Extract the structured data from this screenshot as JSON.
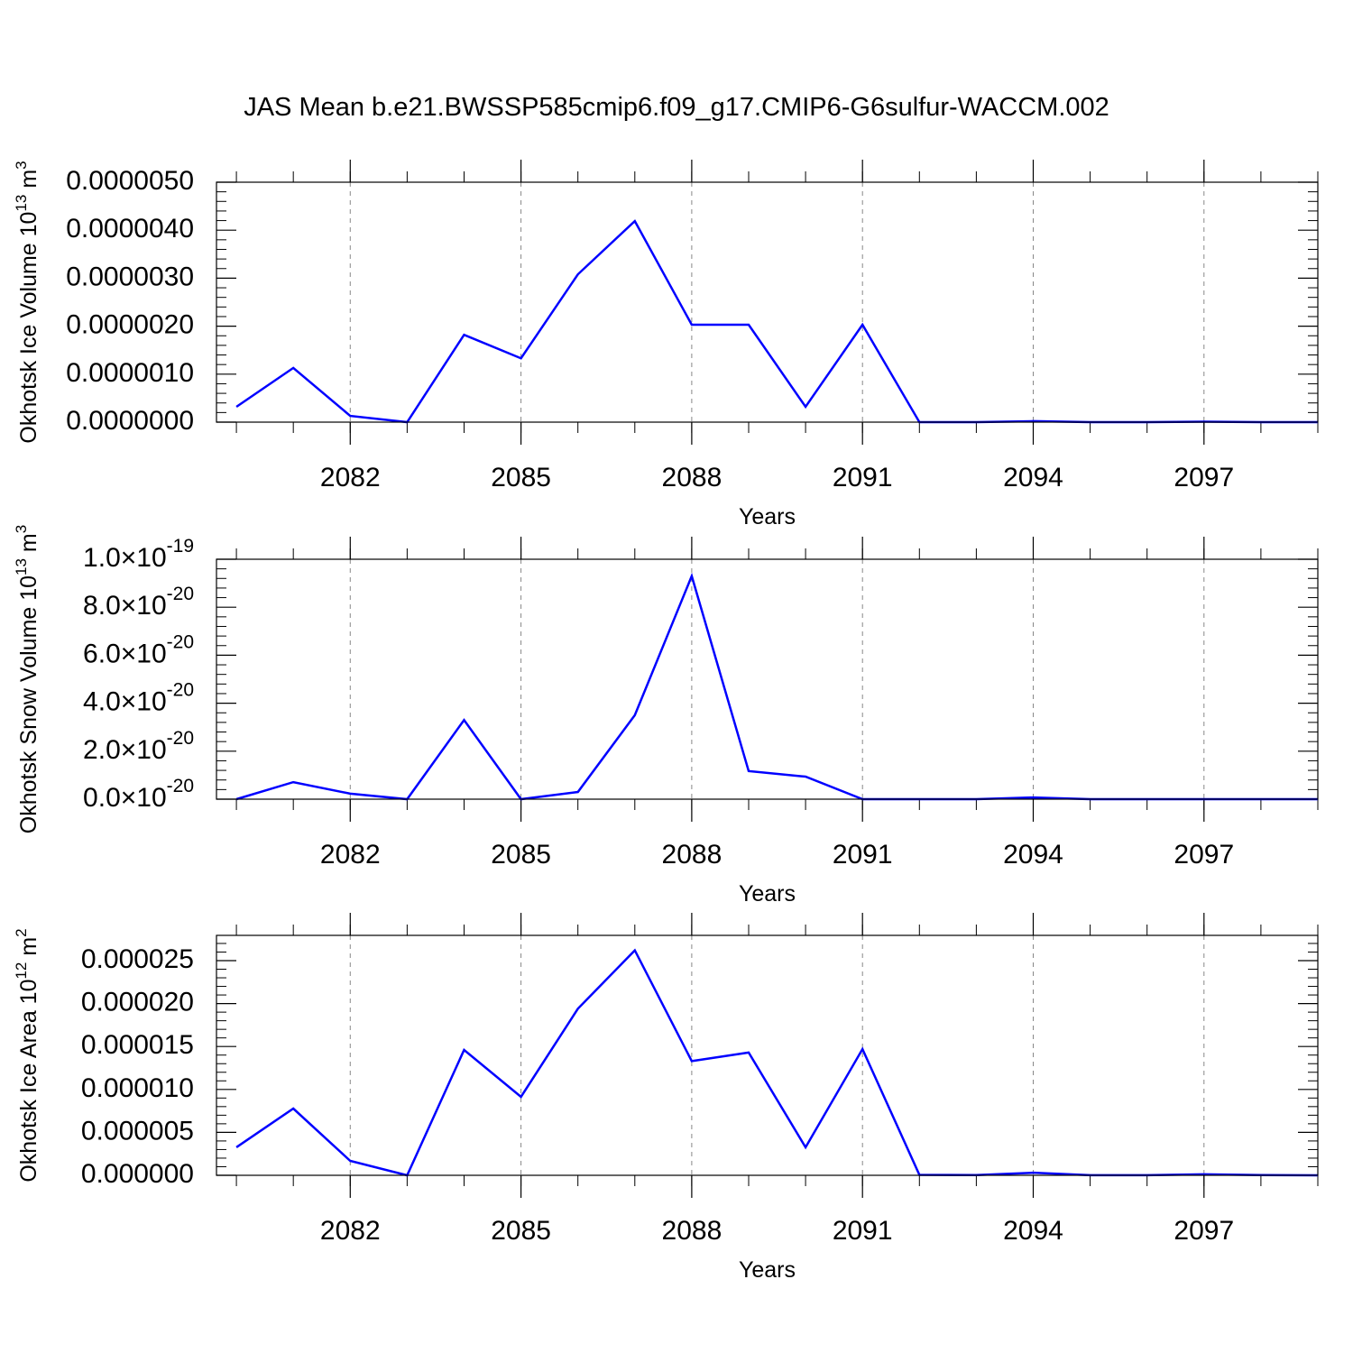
{
  "chart_data": [
    {
      "type": "line",
      "title": "JAS Mean b.e21.BWSSP585cmip6.f09_g17.CMIP6-G6sulfur-WACCM.002",
      "x_label": "Years",
      "y_label_parts": [
        "Okhotsk Ice Volume 10",
        "13",
        " m",
        "3"
      ],
      "x": [
        2080,
        2081,
        2082,
        2083,
        2084,
        2085,
        2086,
        2087,
        2088,
        2089,
        2090,
        2091,
        2092,
        2093,
        2094,
        2095,
        2096,
        2097,
        2098,
        2099
      ],
      "values": [
        3.2e-07,
        1.13e-06,
        1.3e-07,
        0,
        1.82e-06,
        1.33e-06,
        3.08e-06,
        4.19e-06,
        2.03e-06,
        2.03e-06,
        3.2e-07,
        2.03e-06,
        0,
        0,
        2e-08,
        0,
        0,
        1e-08,
        0,
        0
      ],
      "color": "#0000ff",
      "xlim": [
        2079.65,
        2099
      ],
      "xticks": [
        2082,
        2085,
        2088,
        2091,
        2094,
        2097
      ],
      "ylim": [
        0,
        5e-06
      ],
      "yticks": [
        {
          "value": 0,
          "label": "0.0000000"
        },
        {
          "value": 1e-06,
          "label": "0.0000010"
        },
        {
          "value": 2e-06,
          "label": "0.0000020"
        },
        {
          "value": 3e-06,
          "label": "0.0000030"
        },
        {
          "value": 4e-06,
          "label": "0.0000040"
        },
        {
          "value": 5e-06,
          "label": "0.0000050"
        }
      ],
      "grid": true
    },
    {
      "type": "line",
      "x_label": "Years",
      "y_label_parts": [
        "Okhotsk Snow Volume 10",
        "13",
        " m",
        "3"
      ],
      "x": [
        2080,
        2081,
        2082,
        2083,
        2084,
        2085,
        2086,
        2087,
        2088,
        2089,
        2090,
        2091,
        2092,
        2093,
        2094,
        2095,
        2096,
        2097,
        2098,
        2099
      ],
      "values": [
        0,
        7.1e-21,
        2.3e-21,
        0,
        3.3e-20,
        0,
        3e-21,
        3.5e-20,
        9.3e-20,
        1.17e-20,
        9.4e-21,
        0,
        0,
        0,
        7e-22,
        0,
        0,
        0,
        0,
        0
      ],
      "color": "#0000ff",
      "xlim": [
        2079.65,
        2099
      ],
      "xticks": [
        2082,
        2085,
        2088,
        2091,
        2094,
        2097
      ],
      "ylim": [
        0,
        1e-19
      ],
      "yticks": [
        {
          "value": 0,
          "label": "0.0×10",
          "exponent": "-20"
        },
        {
          "value": 2e-20,
          "label": "2.0×10",
          "exponent": "-20"
        },
        {
          "value": 4e-20,
          "label": "4.0×10",
          "exponent": "-20"
        },
        {
          "value": 6e-20,
          "label": "6.0×10",
          "exponent": "-20"
        },
        {
          "value": 8e-20,
          "label": "8.0×10",
          "exponent": "-20"
        },
        {
          "value": 1e-19,
          "label": "1.0×10",
          "exponent": "-19"
        }
      ],
      "grid": true
    },
    {
      "type": "line",
      "x_label": "Years",
      "y_label_parts": [
        "Okhotsk Ice Area 10",
        "12",
        " m",
        "2"
      ],
      "x": [
        2080,
        2081,
        2082,
        2083,
        2084,
        2085,
        2086,
        2087,
        2088,
        2089,
        2090,
        2091,
        2092,
        2093,
        2094,
        2095,
        2096,
        2097,
        2098,
        2099
      ],
      "values": [
        3.26e-06,
        7.77e-06,
        1.68e-06,
        0,
        1.46e-05,
        9.14e-06,
        1.94e-05,
        2.62e-05,
        1.33e-05,
        1.43e-05,
        3.26e-06,
        1.47e-05,
        5e-08,
        2e-08,
        3e-07,
        1e-08,
        1e-08,
        1.2e-07,
        2e-08,
        0
      ],
      "color": "#0000ff",
      "xlim": [
        2079.65,
        2099
      ],
      "xticks": [
        2082,
        2085,
        2088,
        2091,
        2094,
        2097
      ],
      "ylim": [
        0,
        2.794e-05
      ],
      "yticks": [
        {
          "value": 0,
          "label": "0.000000"
        },
        {
          "value": 5e-06,
          "label": "0.000005"
        },
        {
          "value": 1e-05,
          "label": "0.000010"
        },
        {
          "value": 1.5e-05,
          "label": "0.000015"
        },
        {
          "value": 2e-05,
          "label": "0.000020"
        },
        {
          "value": 2.5e-05,
          "label": "0.000025"
        }
      ],
      "grid": true
    }
  ]
}
